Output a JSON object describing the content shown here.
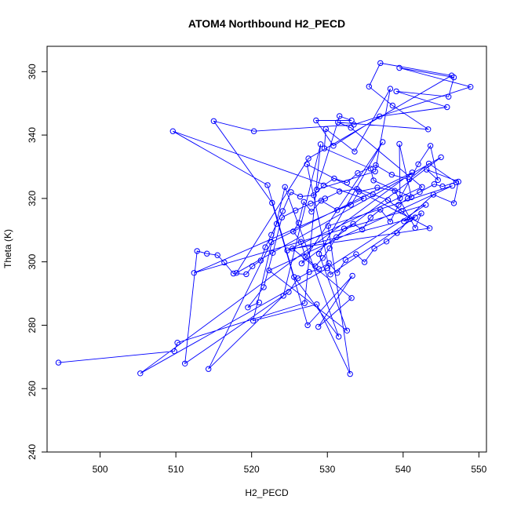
{
  "chart_data": {
    "type": "scatter",
    "title": "ATOM4 Northbound H2_PECD",
    "xlabel": "H2_PECD",
    "ylabel": "Theta (K)",
    "xlim": [
      493,
      551
    ],
    "ylim": [
      240,
      368
    ],
    "x_ticks": [
      500,
      510,
      520,
      530,
      540,
      550
    ],
    "y_ticks": [
      240,
      260,
      280,
      300,
      320,
      340,
      360
    ],
    "grid": false,
    "legend": "none",
    "series_color": "#0000ff",
    "marker": "open-circle",
    "connected": true,
    "series": [
      {
        "points": [
          [
            494.5,
            268.2
          ],
          [
            509.8,
            271.8
          ],
          [
            510.2,
            274.5
          ],
          [
            527.0,
            287.0
          ],
          [
            529.1,
            337.1
          ],
          [
            524.2,
            289.3
          ],
          [
            514.3,
            266.2
          ],
          [
            522.6,
            306.2
          ],
          [
            541.2,
            328.2
          ],
          [
            505.3,
            264.8
          ],
          [
            530.0,
            298.0
          ],
          [
            543.0,
            318.0
          ],
          [
            512.4,
            296.5
          ],
          [
            534.8,
            320.0
          ],
          [
            509.6,
            341.2
          ],
          [
            522.1,
            324.2
          ],
          [
            525.6,
            295.2
          ],
          [
            531.5,
            276.4
          ],
          [
            524.4,
            323.6
          ],
          [
            520.2,
            281.4
          ],
          [
            528.6,
            286.6
          ],
          [
            533.0,
            264.6
          ],
          [
            530.1,
            311.3
          ],
          [
            546.5,
            324.0
          ],
          [
            522.3,
            297.3
          ],
          [
            532.6,
            278.3
          ],
          [
            528.9,
            302.5
          ],
          [
            537.3,
            337.8
          ],
          [
            526.6,
            299.5
          ],
          [
            545.0,
            333.0
          ],
          [
            518.0,
            296.5
          ],
          [
            527.5,
            332.6
          ],
          [
            546.4,
            358.8
          ],
          [
            537.0,
            362.7
          ],
          [
            535.5,
            355.3
          ],
          [
            538.6,
            349.3
          ],
          [
            543.3,
            341.8
          ],
          [
            531.4,
            344.0
          ],
          [
            533.1,
            342.3
          ],
          [
            542.5,
            323.6
          ],
          [
            524.7,
            303.6
          ],
          [
            541.6,
            314.0
          ],
          [
            530.4,
            296.0
          ],
          [
            527.3,
            330.8
          ],
          [
            543.5,
            310.6
          ],
          [
            525.4,
            304.2
          ],
          [
            533.2,
            288.6
          ],
          [
            528.8,
            279.5
          ],
          [
            533.3,
            295.6
          ],
          [
            527.4,
            280.0
          ],
          [
            522.7,
            318.6
          ],
          [
            515.0,
            344.4
          ],
          [
            520.3,
            341.2
          ],
          [
            533.5,
            343.3
          ],
          [
            548.9,
            355.2
          ],
          [
            539.5,
            361.2
          ],
          [
            546.7,
            358.2
          ],
          [
            546.0,
            352.1
          ],
          [
            539.1,
            353.8
          ],
          [
            545.8,
            348.8
          ],
          [
            536.9,
            345.9
          ],
          [
            530.8,
            336.6
          ],
          [
            528.5,
            344.6
          ],
          [
            533.2,
            344.6
          ],
          [
            531.6,
            346.0
          ],
          [
            528.6,
            322.8
          ],
          [
            536.3,
            328.5
          ],
          [
            538.3,
            354.6
          ],
          [
            533.6,
            334.8
          ],
          [
            529.8,
            341.9
          ],
          [
            529.6,
            335.8
          ],
          [
            535.7,
            329.4
          ],
          [
            536.1,
            325.7
          ],
          [
            541.1,
            320.4
          ],
          [
            539.5,
            337.2
          ],
          [
            539.6,
            320.1
          ],
          [
            542.0,
            330.8
          ],
          [
            543.6,
            336.6
          ],
          [
            544.6,
            325.8
          ],
          [
            543.1,
            329.1
          ],
          [
            547.3,
            325.3
          ],
          [
            546.7,
            318.5
          ],
          [
            544.0,
            321.2
          ],
          [
            540.1,
            312.8
          ],
          [
            542.4,
            315.3
          ],
          [
            541.6,
            310.7
          ],
          [
            538.9,
            322.4
          ],
          [
            536.6,
            323.4
          ],
          [
            534.2,
            322.2
          ],
          [
            533.1,
            318.0
          ],
          [
            531.3,
            316.3
          ],
          [
            529.2,
            319.3
          ],
          [
            527.9,
            315.8
          ],
          [
            526.9,
            318.9
          ],
          [
            526.2,
            312.3
          ],
          [
            525.5,
            309.6
          ],
          [
            526.5,
            306.3
          ],
          [
            527.1,
            301.5
          ],
          [
            528.4,
            298.6
          ],
          [
            529.4,
            301.2
          ],
          [
            530.3,
            304.3
          ],
          [
            531.2,
            307.8
          ],
          [
            532.2,
            310.5
          ],
          [
            533.4,
            312.0
          ],
          [
            534.6,
            310.2
          ],
          [
            535.7,
            314.0
          ],
          [
            537.0,
            316.5
          ],
          [
            538.3,
            312.7
          ],
          [
            539.4,
            318.0
          ],
          [
            540.6,
            320.0
          ],
          [
            542.2,
            322.0
          ],
          [
            544.1,
            324.5
          ],
          [
            545.2,
            323.8
          ],
          [
            547.0,
            325.1
          ],
          [
            543.4,
            331.0
          ],
          [
            540.8,
            326.0
          ],
          [
            538.5,
            327.5
          ],
          [
            536.4,
            330.5
          ],
          [
            534.0,
            328.0
          ],
          [
            532.6,
            325.0
          ],
          [
            530.9,
            326.3
          ],
          [
            529.5,
            324.1
          ],
          [
            528.2,
            321.0
          ],
          [
            526.4,
            320.6
          ],
          [
            525.2,
            322.0
          ],
          [
            524.1,
            316.0
          ],
          [
            523.3,
            312.0
          ],
          [
            522.6,
            308.5
          ],
          [
            521.8,
            304.6
          ],
          [
            521.2,
            300.4
          ],
          [
            520.1,
            298.6
          ],
          [
            519.3,
            296.1
          ],
          [
            517.6,
            296.3
          ],
          [
            516.4,
            299.8
          ],
          [
            515.5,
            302.1
          ],
          [
            514.1,
            302.6
          ],
          [
            512.8,
            303.4
          ],
          [
            511.2,
            267.9
          ],
          [
            524.9,
            290.5
          ],
          [
            526.1,
            294.8
          ],
          [
            527.6,
            296.8
          ],
          [
            528.9,
            297.7
          ],
          [
            530.2,
            299.6
          ],
          [
            531.3,
            296.5
          ],
          [
            532.4,
            300.6
          ],
          [
            533.8,
            302.4
          ],
          [
            534.9,
            299.9
          ],
          [
            536.2,
            304.2
          ],
          [
            537.8,
            306.4
          ],
          [
            539.2,
            309.1
          ],
          [
            540.9,
            313.5
          ],
          [
            539.8,
            316.0
          ],
          [
            538.0,
            319.5
          ],
          [
            536.0,
            321.3
          ],
          [
            533.9,
            323.0
          ],
          [
            531.6,
            322.2
          ],
          [
            529.7,
            320.0
          ],
          [
            527.8,
            318.4
          ],
          [
            525.8,
            316.2
          ],
          [
            524.0,
            314.0
          ],
          [
            522.8,
            302.8
          ],
          [
            521.6,
            292.0
          ],
          [
            519.5,
            285.6
          ],
          [
            521.0,
            287.2
          ]
        ]
      }
    ]
  }
}
